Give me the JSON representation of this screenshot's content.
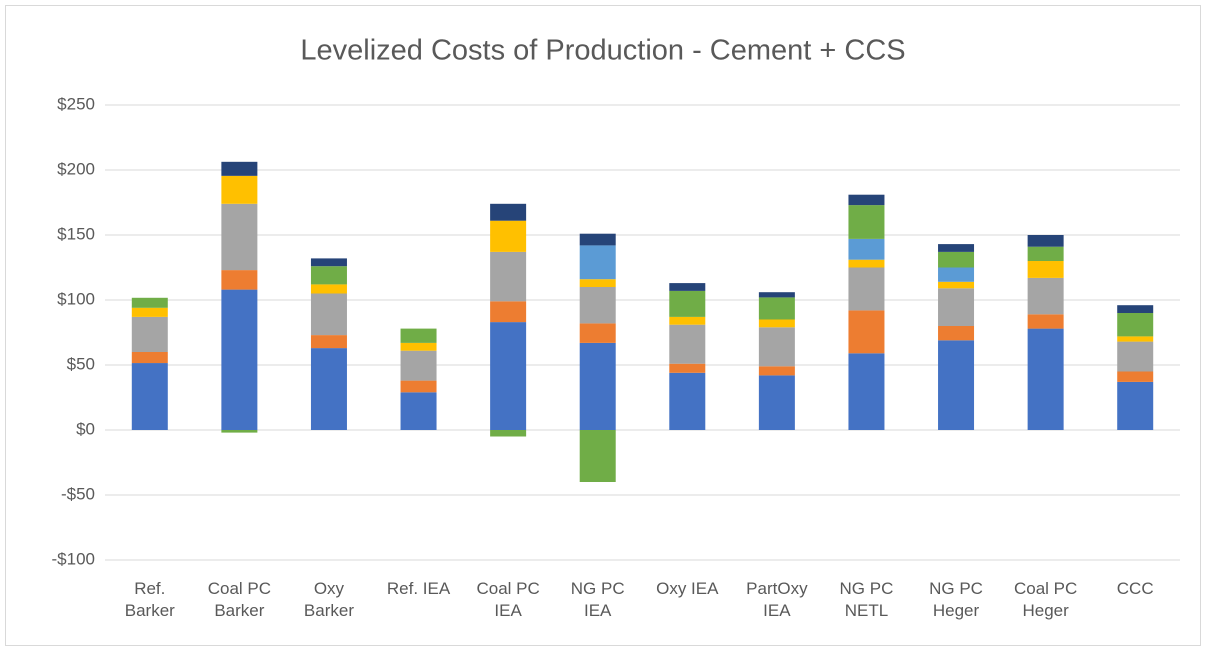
{
  "chart_data": {
    "type": "stacked-bar",
    "title": "Levelized Costs of Production - Cement + CCS",
    "categories": [
      "Ref. Barker",
      "Coal PC Barker",
      "Oxy Barker",
      "Ref. IEA",
      "Coal PC IEA",
      "NG PC IEA",
      "Oxy IEA",
      "PartOxy IEA",
      "NG PC NETL",
      "NG PC Heger",
      "Coal PC Heger",
      "CCC"
    ],
    "series": [
      {
        "color": "#4472c4",
        "values": [
          51.5,
          108,
          63,
          29,
          83,
          67,
          44,
          42,
          59,
          69,
          78,
          37
        ]
      },
      {
        "color": "#ed7d31",
        "values": [
          8.5,
          15,
          10,
          9,
          16,
          15,
          7,
          7,
          33,
          11,
          11,
          8
        ]
      },
      {
        "color": "#a5a5a5",
        "values": [
          27,
          51,
          32,
          23,
          38,
          28,
          30,
          30,
          33,
          29,
          28,
          23
        ]
      },
      {
        "color": "#ffc000",
        "values": [
          7,
          21.5,
          7,
          6,
          24,
          6,
          6,
          6,
          6,
          5,
          13,
          4
        ]
      },
      {
        "color": "#5b9bd5",
        "values": [
          0,
          0,
          0,
          0,
          0,
          26,
          0,
          0,
          16,
          11,
          0,
          0
        ]
      },
      {
        "color": "#70ad47",
        "values": [
          7.7,
          -2,
          14,
          11,
          -5,
          -40,
          20,
          17,
          26,
          12,
          11,
          18
        ]
      },
      {
        "color": "#264478",
        "values": [
          0,
          10.8,
          6,
          0,
          13,
          9,
          6,
          4,
          8,
          6,
          9,
          6
        ]
      }
    ],
    "ylim": [
      -100,
      250
    ],
    "yticks": [
      {
        "value": -100,
        "label": "-$100"
      },
      {
        "value": -50,
        "label": "-$50"
      },
      {
        "value": 0,
        "label": "$0"
      },
      {
        "value": 50,
        "label": "$50"
      },
      {
        "value": 100,
        "label": "$100"
      },
      {
        "value": 150,
        "label": "$150"
      },
      {
        "value": 200,
        "label": "$200"
      },
      {
        "value": 250,
        "label": "$250"
      }
    ],
    "grid": true
  }
}
